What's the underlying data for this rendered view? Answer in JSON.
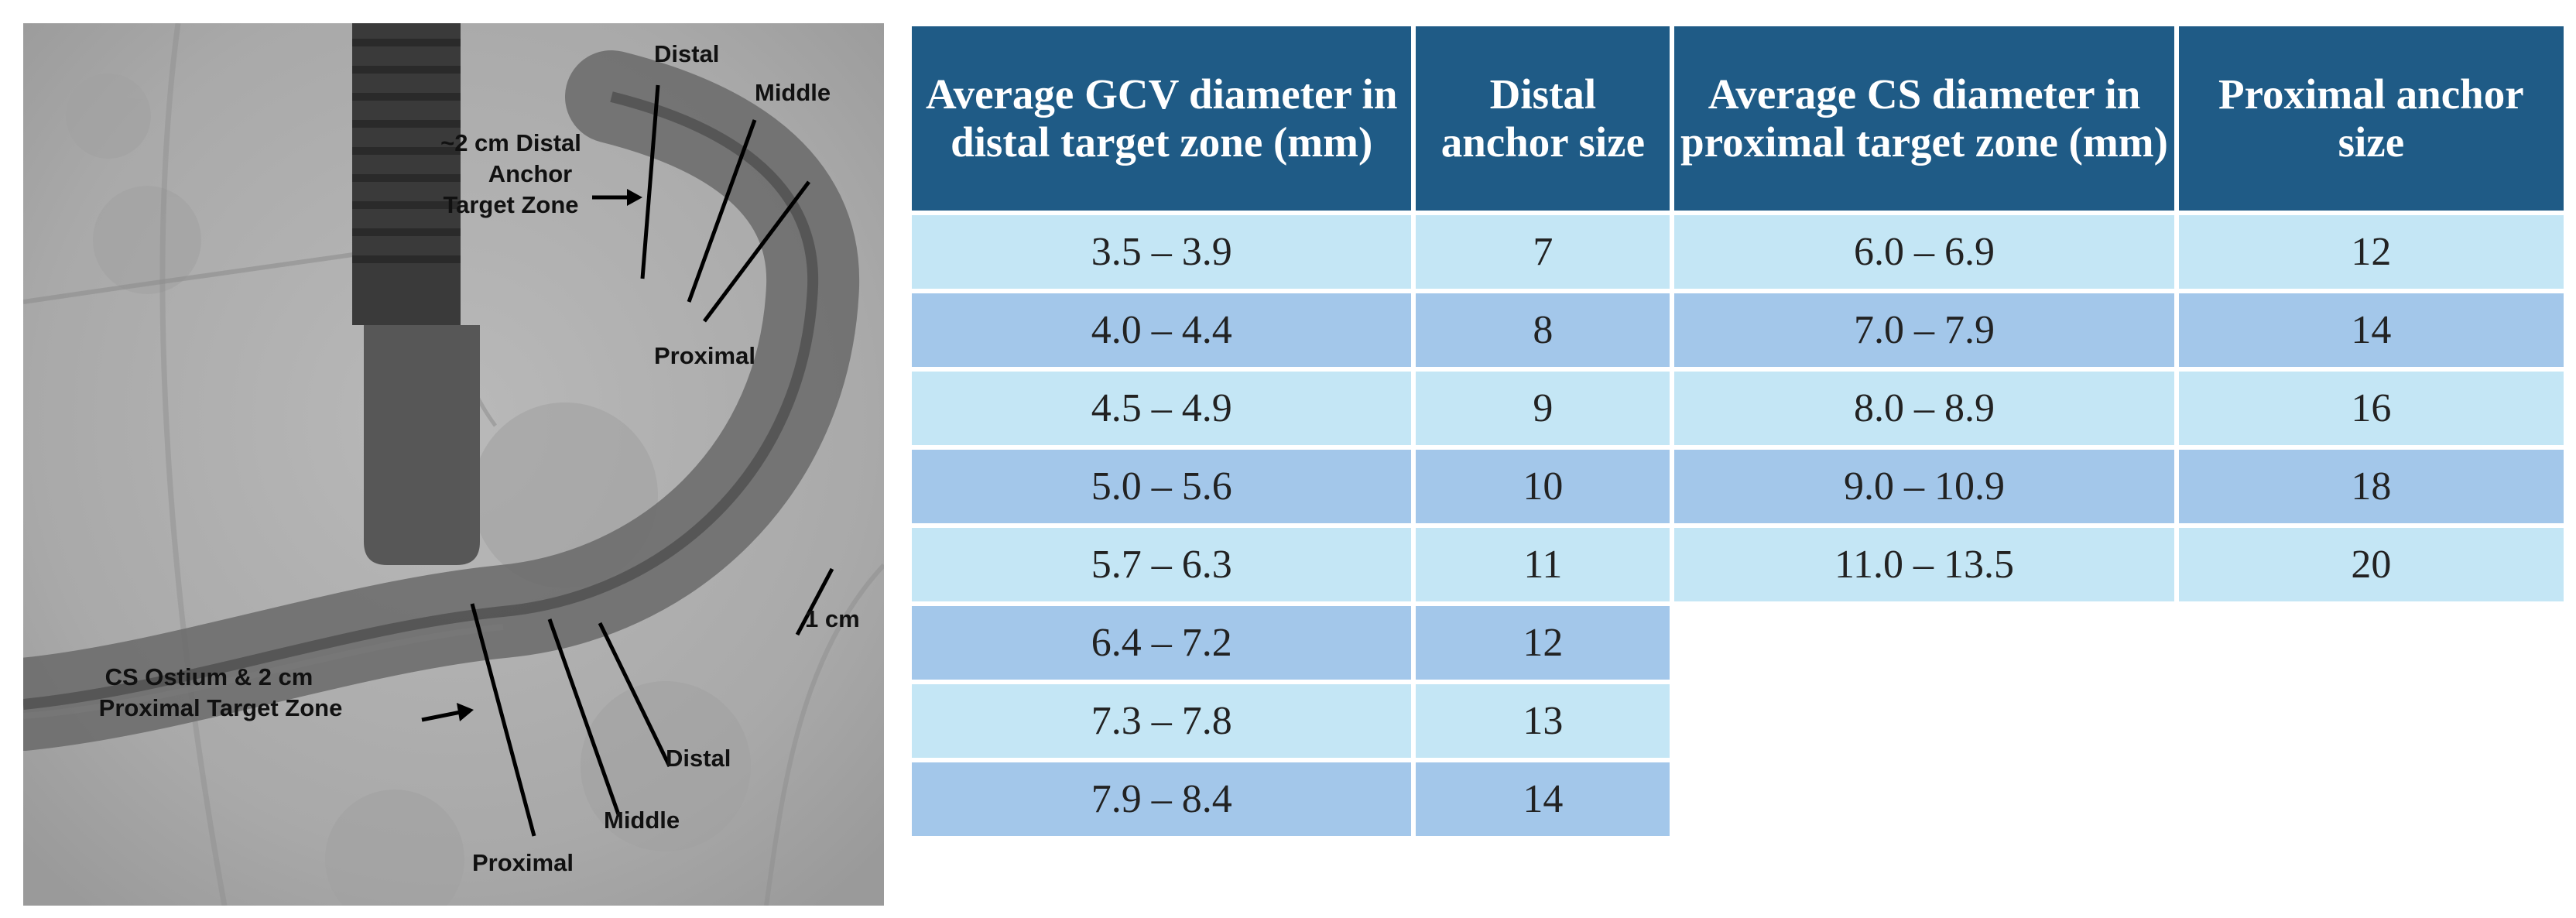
{
  "figure": {
    "xray": {
      "labels": {
        "distal_top": "Distal",
        "middle_top": "Middle",
        "distal_target_zone": "~2 cm Distal Anchor Target Zone",
        "distal_target_line1": "~2 cm Distal",
        "distal_target_line2": "Anchor",
        "distal_target_line3": "Target Zone",
        "proximal_top": "Proximal",
        "scale_bar": "1 cm",
        "cs_ostium_line1": "CS Ostium & 2 cm",
        "cs_ostium_line2": "Proximal Target Zone",
        "distal_bottom": "Distal",
        "middle_bottom": "Middle",
        "proximal_bottom": "Proximal"
      }
    },
    "table": {
      "headers": [
        "Average GCV diameter in distal target zone (mm)",
        "Distal anchor size",
        "Average CS diameter in proximal target zone (mm)",
        "Proximal anchor size"
      ],
      "rows": [
        [
          "3.5 – 3.9",
          "7",
          "6.0 – 6.9",
          "12"
        ],
        [
          "4.0 – 4.4",
          "8",
          "7.0 – 7.9",
          "14"
        ],
        [
          "4.5 – 4.9",
          "9",
          "8.0 – 8.9",
          "16"
        ],
        [
          "5.0 – 5.6",
          "10",
          "9.0 – 10.9",
          "18"
        ],
        [
          "5.7 – 6.3",
          "11",
          "11.0 – 13.5",
          "20"
        ],
        [
          "6.4 – 7.2",
          "12",
          "",
          ""
        ],
        [
          "7.3 – 7.8",
          "13",
          "",
          ""
        ],
        [
          "7.9 – 8.4",
          "14",
          "",
          ""
        ]
      ]
    },
    "colors": {
      "header_bg": "#1f5b86",
      "row_light": "#c4e6f5",
      "row_dark": "#a3c7ea"
    }
  }
}
